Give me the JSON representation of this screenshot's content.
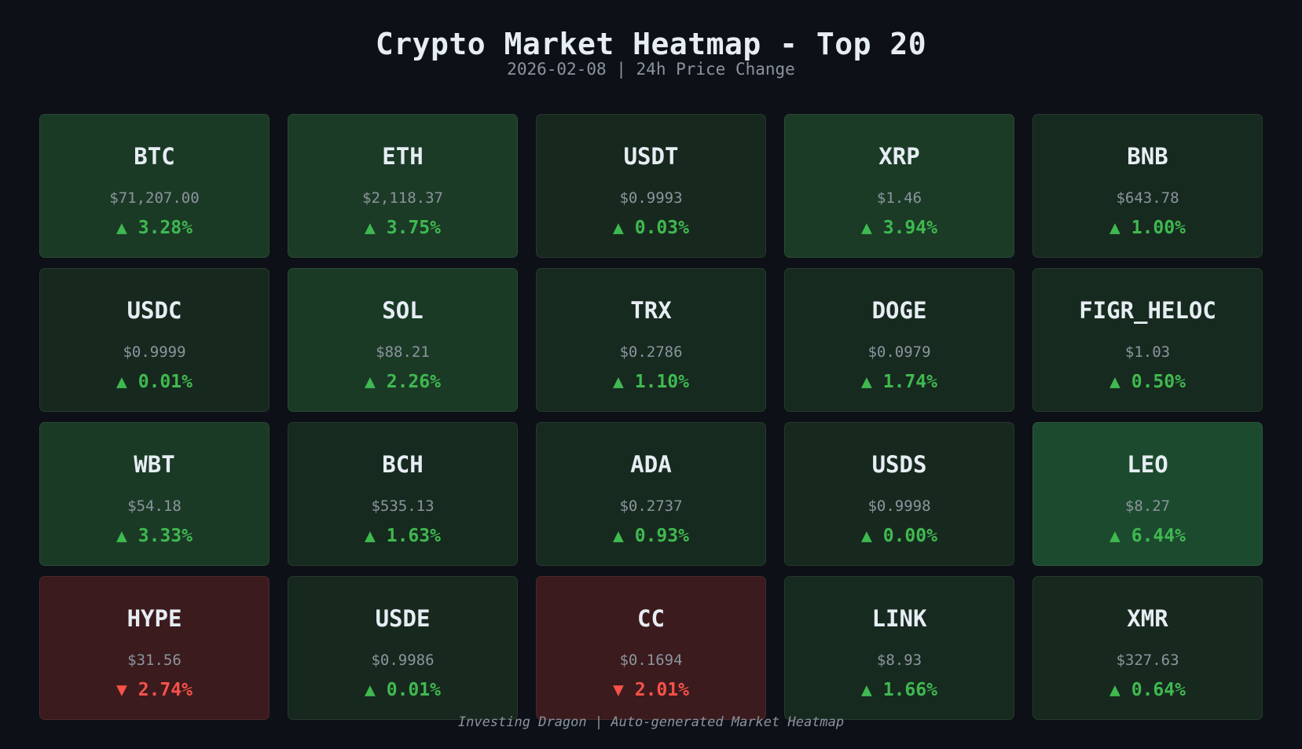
{
  "header": {
    "title": "Crypto Market Heatmap - Top 20",
    "subtitle": "2026-02-08 | 24h Price Change"
  },
  "footer": "Investing Dragon | Auto-generated Market Heatmap",
  "colors": {
    "background": "#0d1017",
    "up_text": "#3fb950",
    "down_text": "#f85149"
  },
  "chart_data": {
    "type": "heatmap",
    "title": "Crypto Market Heatmap - Top 20",
    "subtitle": "2026-02-08 | 24h Price Change",
    "grid": {
      "rows": 4,
      "cols": 5
    },
    "cells": [
      {
        "symbol": "BTC",
        "price": "$71,207.00",
        "change": 3.28,
        "change_label": "▲ 3.28%",
        "direction": "up",
        "bg": "#1b3a26"
      },
      {
        "symbol": "ETH",
        "price": "$2,118.37",
        "change": 3.75,
        "change_label": "▲ 3.75%",
        "direction": "up",
        "bg": "#1b3b26"
      },
      {
        "symbol": "USDT",
        "price": "$0.9993",
        "change": 0.03,
        "change_label": "▲ 0.03%",
        "direction": "up",
        "bg": "#17291e"
      },
      {
        "symbol": "XRP",
        "price": "$1.46",
        "change": 3.94,
        "change_label": "▲ 3.94%",
        "direction": "up",
        "bg": "#1b3b26"
      },
      {
        "symbol": "BNB",
        "price": "$643.78",
        "change": 1.0,
        "change_label": "▲ 1.00%",
        "direction": "up",
        "bg": "#172a1f"
      },
      {
        "symbol": "USDC",
        "price": "$0.9999",
        "change": 0.01,
        "change_label": "▲ 0.01%",
        "direction": "up",
        "bg": "#17291e"
      },
      {
        "symbol": "SOL",
        "price": "$88.21",
        "change": 2.26,
        "change_label": "▲ 2.26%",
        "direction": "up",
        "bg": "#1b3a26"
      },
      {
        "symbol": "TRX",
        "price": "$0.2786",
        "change": 1.1,
        "change_label": "▲ 1.10%",
        "direction": "up",
        "bg": "#172a1f"
      },
      {
        "symbol": "DOGE",
        "price": "$0.0979",
        "change": 1.74,
        "change_label": "▲ 1.74%",
        "direction": "up",
        "bg": "#172a1f"
      },
      {
        "symbol": "FIGR_HELOC",
        "price": "$1.03",
        "change": 0.5,
        "change_label": "▲ 0.50%",
        "direction": "up",
        "bg": "#172a1f"
      },
      {
        "symbol": "WBT",
        "price": "$54.18",
        "change": 3.33,
        "change_label": "▲ 3.33%",
        "direction": "up",
        "bg": "#1b3a26"
      },
      {
        "symbol": "BCH",
        "price": "$535.13",
        "change": 1.63,
        "change_label": "▲ 1.63%",
        "direction": "up",
        "bg": "#172a1f"
      },
      {
        "symbol": "ADA",
        "price": "$0.2737",
        "change": 0.93,
        "change_label": "▲ 0.93%",
        "direction": "up",
        "bg": "#172a1f"
      },
      {
        "symbol": "USDS",
        "price": "$0.9998",
        "change": 0.0,
        "change_label": "▲ 0.00%",
        "direction": "up",
        "bg": "#17291e"
      },
      {
        "symbol": "LEO",
        "price": "$8.27",
        "change": 6.44,
        "change_label": "▲ 6.44%",
        "direction": "up",
        "bg": "#1c4a2f"
      },
      {
        "symbol": "HYPE",
        "price": "$31.56",
        "change": -2.74,
        "change_label": "▼ 2.74%",
        "direction": "down",
        "bg": "#3b1b1d"
      },
      {
        "symbol": "USDE",
        "price": "$0.9986",
        "change": 0.01,
        "change_label": "▲ 0.01%",
        "direction": "up",
        "bg": "#17291e"
      },
      {
        "symbol": "CC",
        "price": "$0.1694",
        "change": -2.01,
        "change_label": "▼ 2.01%",
        "direction": "down",
        "bg": "#3b1b1d"
      },
      {
        "symbol": "LINK",
        "price": "$8.93",
        "change": 1.66,
        "change_label": "▲ 1.66%",
        "direction": "up",
        "bg": "#172a1f"
      },
      {
        "symbol": "XMR",
        "price": "$327.63",
        "change": 0.64,
        "change_label": "▲ 0.64%",
        "direction": "up",
        "bg": "#17291e"
      }
    ]
  }
}
